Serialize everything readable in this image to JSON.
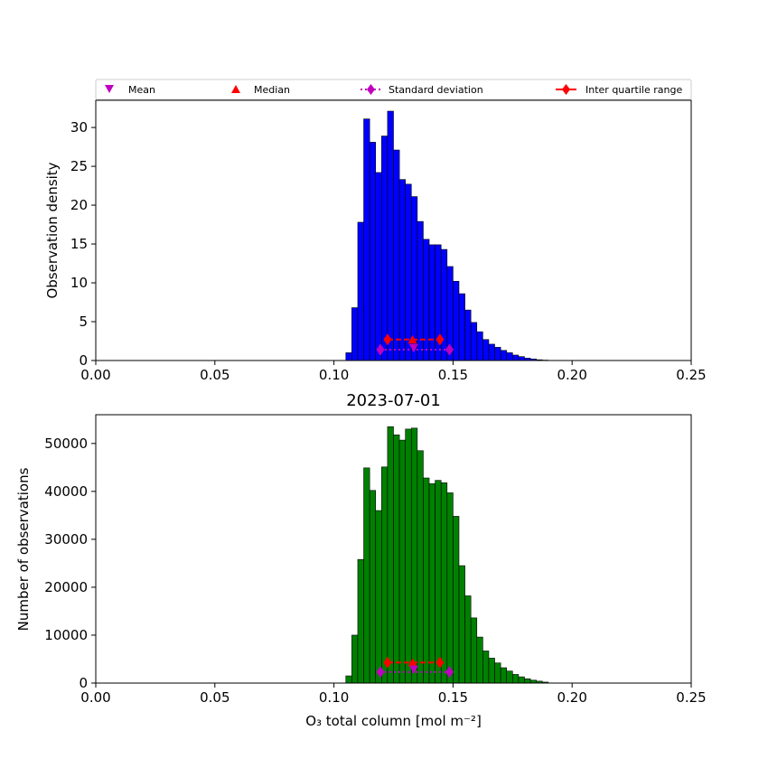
{
  "chart_data": [
    {
      "type": "bar",
      "title": "",
      "xlabel": "",
      "ylabel": "Observation density",
      "xlim": [
        0.0,
        0.25
      ],
      "ylim": [
        0,
        33.5
      ],
      "xticks": [
        "0.00",
        "0.05",
        "0.10",
        "0.15",
        "0.20",
        "0.25"
      ],
      "yticks": [
        "0",
        "5",
        "10",
        "15",
        "20",
        "25",
        "30"
      ],
      "bar_color": "#0000ff",
      "bin_start": 0.105,
      "bin_width": 0.0025,
      "values": [
        1.0,
        6.8,
        17.8,
        31.1,
        28.1,
        24.2,
        28.9,
        32.1,
        27.1,
        23.3,
        22.7,
        21.1,
        17.9,
        15.6,
        14.9,
        14.9,
        14.3,
        12.1,
        10.2,
        8.6,
        6.5,
        4.9,
        3.7,
        2.7,
        2.1,
        1.7,
        1.3,
        1.0,
        0.7,
        0.5,
        0.3,
        0.2,
        0.1,
        0.05
      ],
      "stats": {
        "mean": {
          "x": 0.1335,
          "y": 1.6
        },
        "median": {
          "x": 0.133,
          "y": 2.7
        },
        "std": {
          "x": [
            0.1195,
            0.1485
          ],
          "y": 1.4
        },
        "iqr": {
          "x": [
            0.1225,
            0.1445
          ],
          "y": 2.7
        }
      }
    },
    {
      "type": "bar",
      "title": "2023-07-01",
      "xlabel": "O₃ total column [mol m⁻²]",
      "ylabel": "Number of observations",
      "xlim": [
        0.0,
        0.25
      ],
      "ylim": [
        0,
        56000
      ],
      "xticks": [
        "0.00",
        "0.05",
        "0.10",
        "0.15",
        "0.20",
        "0.25"
      ],
      "yticks": [
        "0",
        "10000",
        "20000",
        "30000",
        "40000",
        "50000"
      ],
      "bar_color": "#008000",
      "bin_start": 0.105,
      "bin_width": 0.0025,
      "values": [
        1500,
        10000,
        25800,
        44900,
        40200,
        36000,
        45100,
        53500,
        51800,
        50700,
        53000,
        53200,
        48500,
        42800,
        41600,
        42300,
        41800,
        39700,
        34800,
        24500,
        18200,
        13600,
        9600,
        6700,
        5200,
        4200,
        3200,
        2500,
        1800,
        1300,
        900,
        600,
        400,
        200
      ],
      "stats": {
        "mean": {
          "x": 0.1335,
          "y": 2800
        },
        "median": {
          "x": 0.133,
          "y": 4300
        },
        "std": {
          "x": [
            0.1195,
            0.1485
          ],
          "y": 2300
        },
        "iqr": {
          "x": [
            0.1225,
            0.1445
          ],
          "y": 4300
        }
      }
    }
  ],
  "legend": {
    "placement": "top",
    "mean_label": "Mean",
    "median_label": "Median",
    "std_label": "Standard deviation",
    "iqr_label": "Inter quartile range",
    "mean_color": "#bf00bf",
    "median_color": "#ff0000",
    "std_color": "#bf00bf",
    "iqr_color": "#ff0000"
  }
}
